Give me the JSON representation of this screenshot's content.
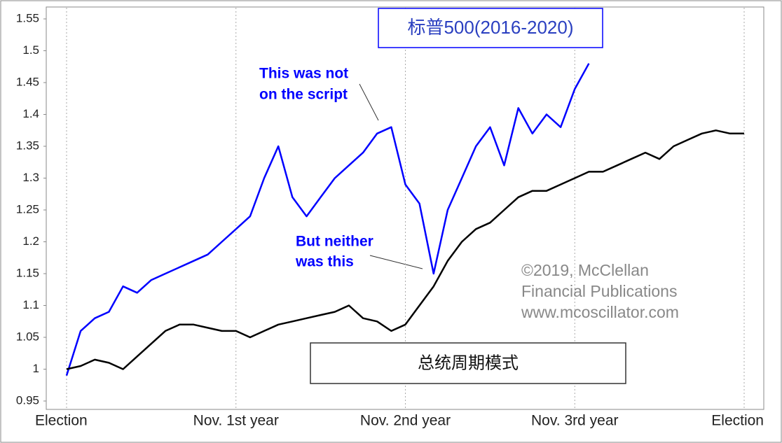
{
  "chart_data": {
    "type": "line",
    "categories": [
      "Election",
      null,
      null,
      null,
      null,
      null,
      null,
      null,
      null,
      null,
      null,
      null,
      "Nov. 1st year",
      null,
      null,
      null,
      null,
      null,
      null,
      null,
      null,
      null,
      null,
      null,
      "Nov. 2nd year",
      null,
      null,
      null,
      null,
      null,
      null,
      null,
      null,
      null,
      null,
      null,
      "Nov. 3rd year",
      null,
      null,
      null,
      null,
      null,
      null,
      null,
      null,
      null,
      null,
      null,
      "Election"
    ],
    "series": [
      {
        "name": "标普500(2016-2020)",
        "color": "#0000ff",
        "values": [
          0.99,
          1.06,
          1.08,
          1.09,
          1.13,
          1.12,
          1.14,
          1.15,
          1.16,
          1.17,
          1.18,
          1.2,
          1.22,
          1.24,
          1.3,
          1.35,
          1.27,
          1.24,
          1.27,
          1.3,
          1.32,
          1.34,
          1.37,
          1.38,
          1.29,
          1.26,
          1.15,
          1.25,
          1.3,
          1.35,
          1.38,
          1.32,
          1.41,
          1.37,
          1.4,
          1.38,
          1.44,
          1.48,
          null,
          null,
          null,
          null,
          null,
          null,
          null,
          null,
          null,
          null,
          null
        ]
      },
      {
        "name": "总统周期模式",
        "color": "#000000",
        "values": [
          1.0,
          1.005,
          1.015,
          1.01,
          1.0,
          1.02,
          1.04,
          1.06,
          1.07,
          1.07,
          1.065,
          1.06,
          1.06,
          1.05,
          1.06,
          1.07,
          1.075,
          1.08,
          1.085,
          1.09,
          1.1,
          1.08,
          1.075,
          1.06,
          1.07,
          1.1,
          1.13,
          1.17,
          1.2,
          1.22,
          1.23,
          1.25,
          1.27,
          1.28,
          1.28,
          1.29,
          1.3,
          1.31,
          1.31,
          1.32,
          1.33,
          1.34,
          1.33,
          1.35,
          1.36,
          1.37,
          1.375,
          1.37,
          1.37
        ]
      }
    ],
    "ylim": [
      0.95,
      1.55
    ],
    "yticks": [
      0.95,
      1,
      1.05,
      1.1,
      1.15,
      1.2,
      1.25,
      1.3,
      1.35,
      1.4,
      1.45,
      1.5,
      1.55
    ],
    "grid": true,
    "annotations": [
      {
        "lines": [
          "This was not",
          "on the script"
        ],
        "color": "#0000ff"
      },
      {
        "lines": [
          "But neither",
          "was this"
        ],
        "color": "#0000ff"
      },
      {
        "lines": [
          "©2019, McClellan",
          "Financial Publications",
          "www.mcoscillator.com"
        ],
        "color": "#888888"
      }
    ]
  }
}
